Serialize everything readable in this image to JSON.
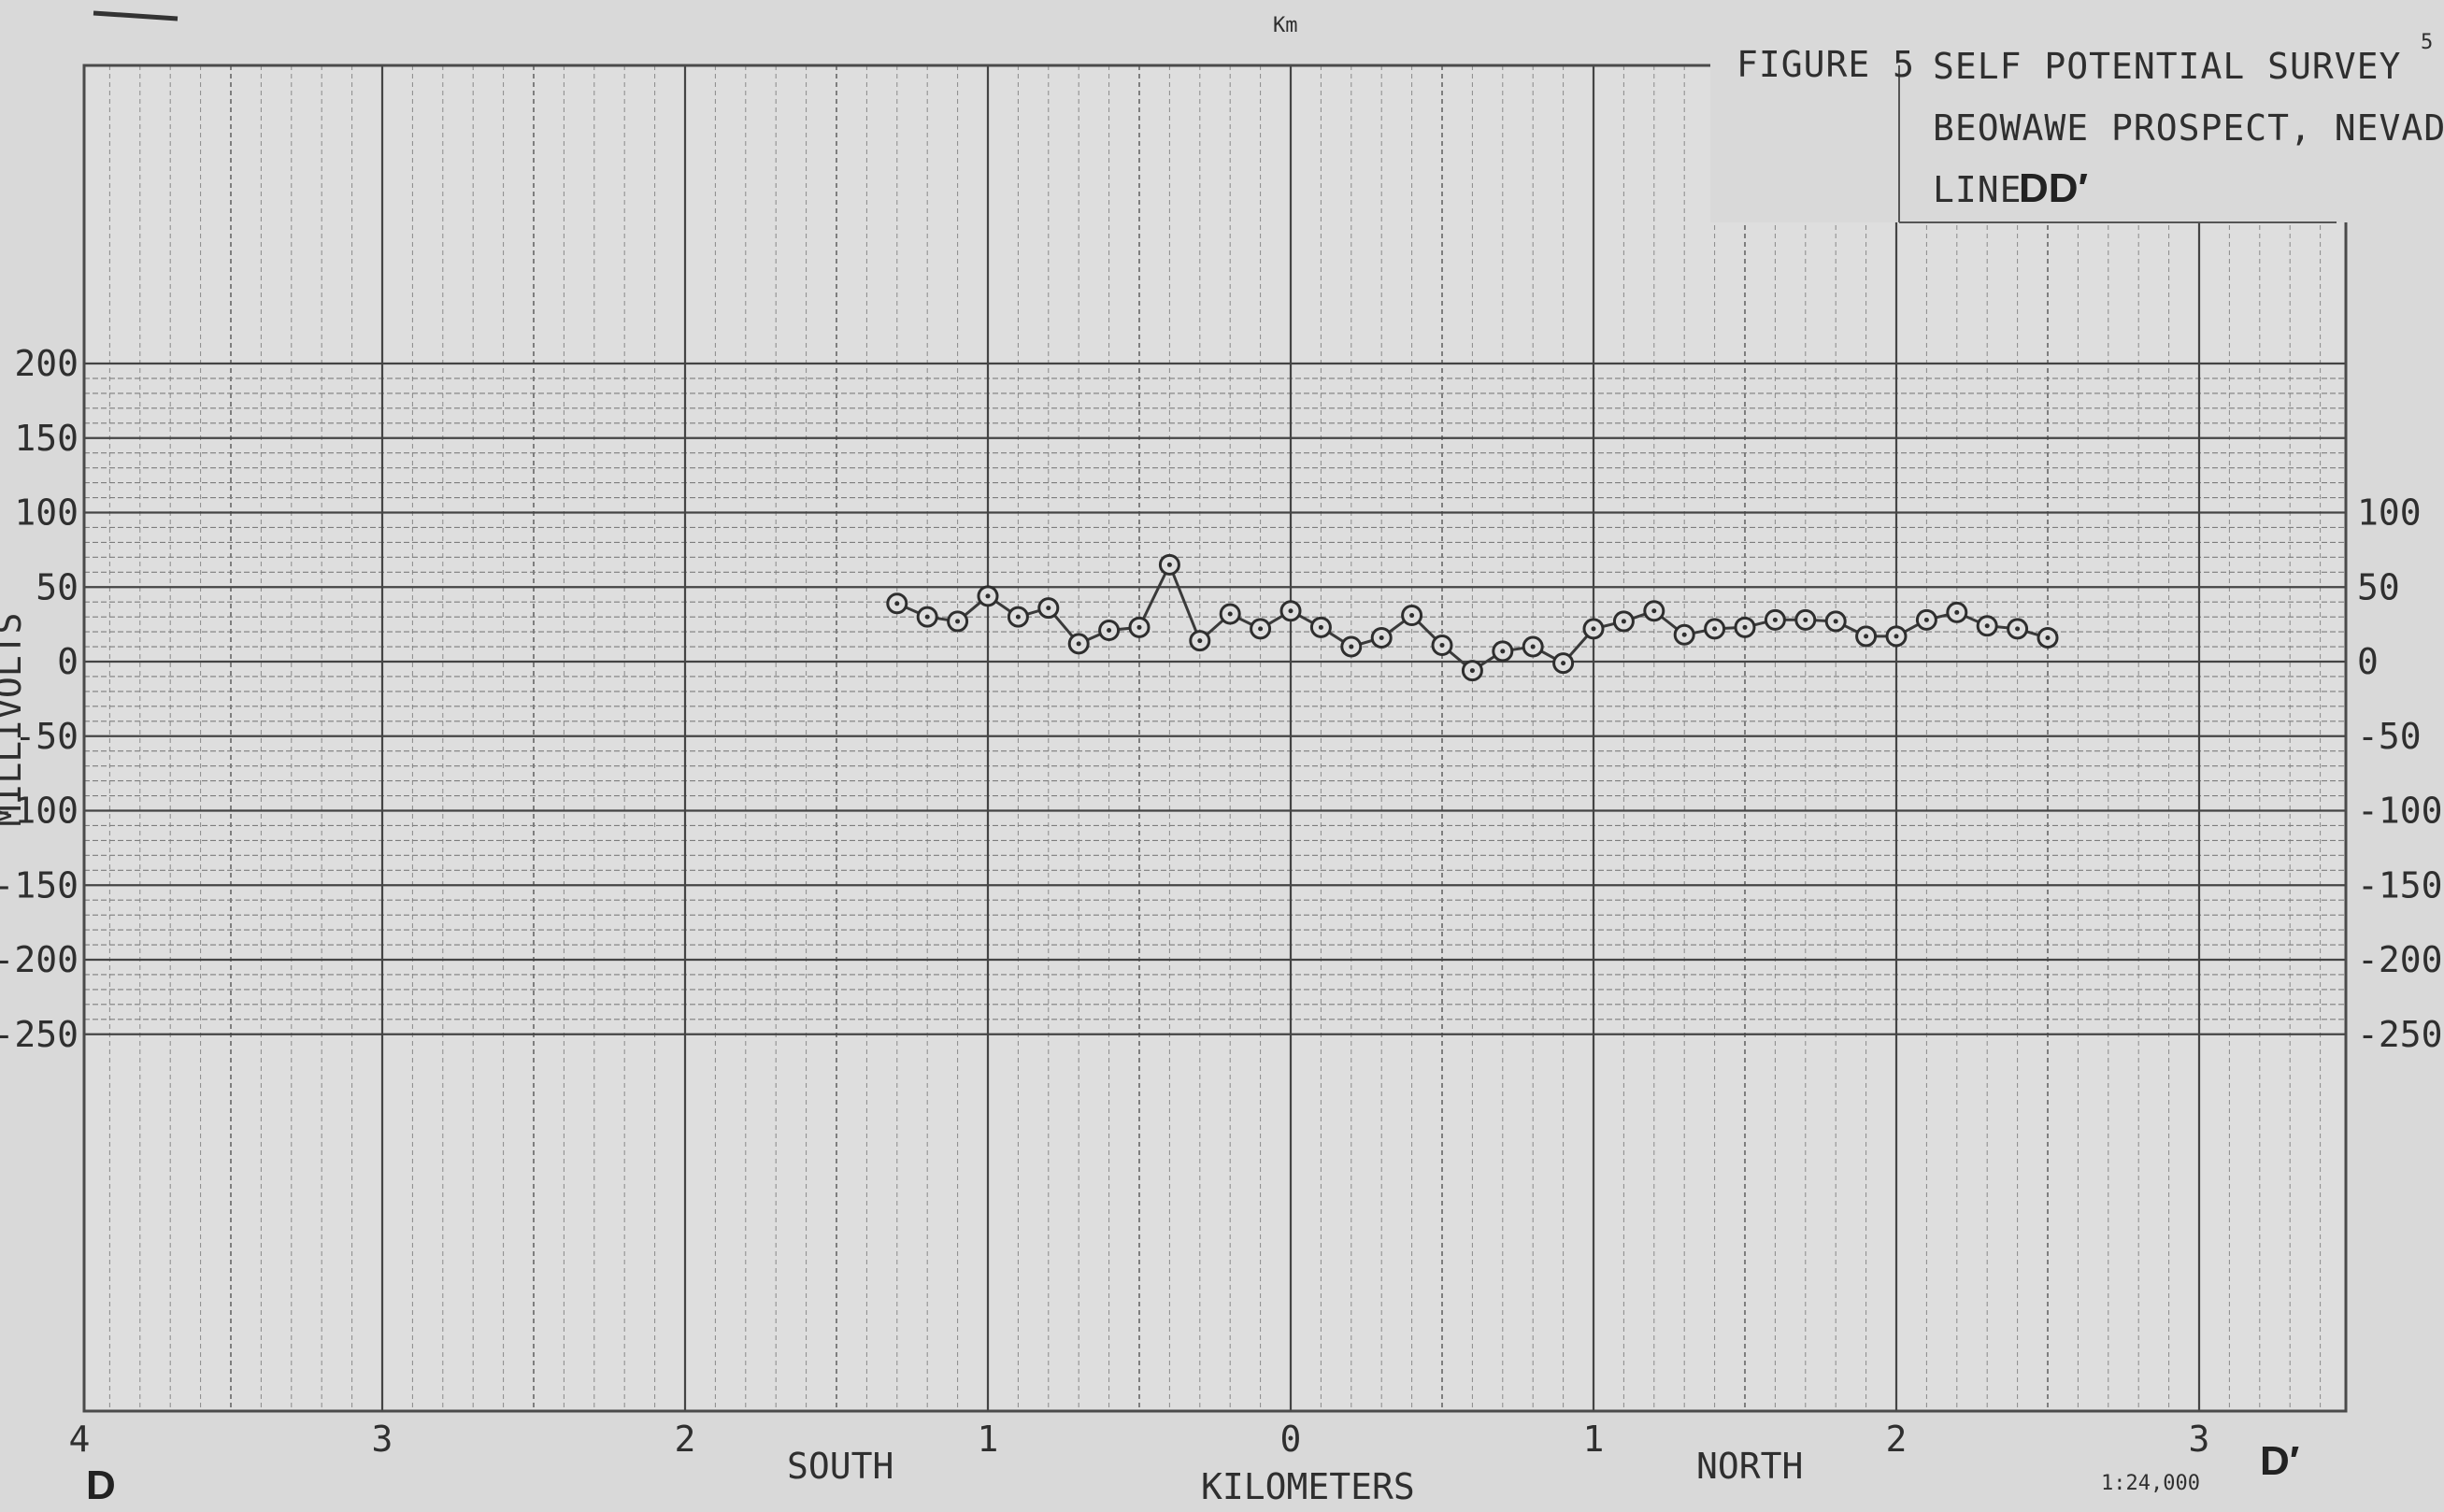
{
  "header": {
    "figure_label": "FIGURE 5",
    "title_line1": "SELF POTENTIAL SURVEY",
    "title_line2": "BEOWAWE PROSPECT, NEVADA",
    "line_prefix": "LINE",
    "line_name": "DD′",
    "top_unit": "Km",
    "corner_mark": "5"
  },
  "footer": {
    "south_label": "SOUTH",
    "north_label": "NORTH",
    "xlabel": "KILOMETERS",
    "start_point": "D",
    "end_point": "D′",
    "scale": "1:24,000"
  },
  "chart_data": {
    "type": "line",
    "title": "SELF POTENTIAL SURVEY",
    "xlabel": "KILOMETERS",
    "ylabel": "MILLIVOLTS",
    "xlim": [
      -4,
      3.4
    ],
    "ylim": [
      -250,
      200
    ],
    "x_tick_labels": [
      "4",
      "3",
      "2",
      "1",
      "0",
      "1",
      "2",
      "3"
    ],
    "x_tick_values": [
      -4,
      -3,
      -2,
      -1,
      0,
      1,
      2,
      3
    ],
    "y_ticks_left": [
      "200",
      "150",
      "100",
      "50",
      "0",
      "-50",
      "-100",
      "-150",
      "-200",
      "-250"
    ],
    "y_tick_values_left": [
      200,
      150,
      100,
      50,
      0,
      -50,
      -100,
      -150,
      -200,
      -250
    ],
    "y_ticks_right": [
      "100",
      "50",
      "0",
      "-50",
      "-100",
      "-150",
      "-200",
      "-250"
    ],
    "y_tick_values_right": [
      100,
      50,
      0,
      -50,
      -100,
      -150,
      -200,
      -250
    ],
    "grid": true,
    "marker": "circle-dot",
    "series": [
      {
        "x": [
          -1.3,
          -1.2,
          -1.1,
          -1.0,
          -0.9,
          -0.8,
          -0.7,
          -0.6,
          -0.5,
          -0.4,
          -0.3,
          -0.2,
          -0.1,
          0.0,
          0.1,
          0.2,
          0.3,
          0.4,
          0.5,
          0.6,
          0.7,
          0.8,
          0.9,
          1.0,
          1.1,
          1.2,
          1.3,
          1.4,
          1.5,
          1.6,
          1.7,
          1.8,
          1.9,
          2.0,
          2.1,
          2.2,
          2.3,
          2.4,
          2.5
        ],
        "y": [
          39,
          30,
          27,
          44,
          30,
          36,
          12,
          21,
          23,
          65,
          14,
          32,
          22,
          34,
          23,
          10,
          16,
          31,
          11,
          -6,
          7,
          10,
          -1,
          22,
          27,
          34,
          18,
          22,
          23,
          28,
          28,
          27,
          17,
          17,
          28,
          33,
          24,
          22,
          16
        ]
      }
    ]
  }
}
